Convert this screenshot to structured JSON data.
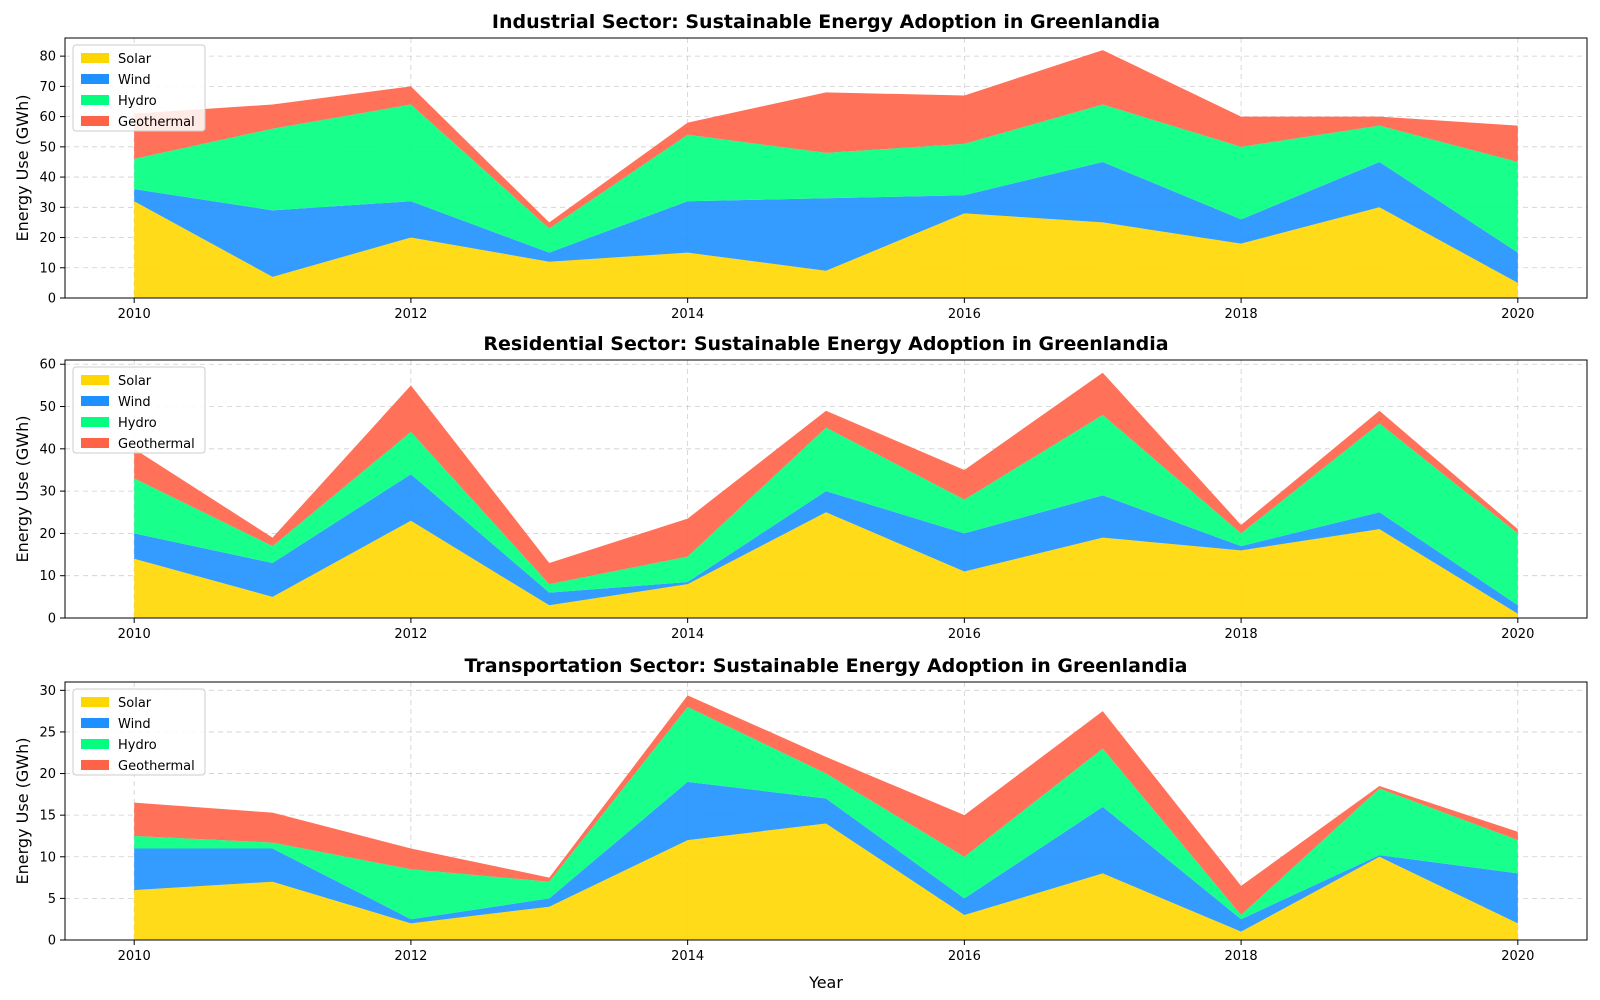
{
  "figure": {
    "xlabel": "Year"
  },
  "colors": {
    "Solar": "#FFD700",
    "Wind": "#1E90FF",
    "Hydro": "#00FF7F",
    "Geothermal": "#FF6347"
  },
  "chart_data": [
    {
      "type": "area",
      "stacked": true,
      "title": "Industrial Sector: Sustainable Energy Adoption in Greenlandia",
      "xlabel": "",
      "ylabel": "Energy Use (GWh)",
      "x": [
        2010,
        2011,
        2012,
        2013,
        2014,
        2015,
        2016,
        2017,
        2018,
        2019,
        2020
      ],
      "xticks": [
        2010,
        2012,
        2014,
        2016,
        2018,
        2020
      ],
      "yticks": [
        0,
        10,
        20,
        30,
        40,
        50,
        60,
        70,
        80
      ],
      "ylim": [
        0,
        86
      ],
      "xlim": [
        2009.5,
        2020.5
      ],
      "grid": true,
      "legend": "upper-left",
      "series": [
        {
          "name": "Solar",
          "values": [
            32,
            7,
            20,
            12,
            15,
            9,
            28,
            25,
            18,
            30,
            5
          ]
        },
        {
          "name": "Wind",
          "values": [
            4,
            22,
            12,
            3,
            17,
            24,
            6,
            20,
            8,
            15,
            10
          ]
        },
        {
          "name": "Hydro",
          "values": [
            10,
            27,
            32,
            8,
            22,
            15,
            17,
            19,
            24,
            12,
            30
          ]
        },
        {
          "name": "Geothermal",
          "values": [
            15,
            8,
            6,
            2,
            4,
            20,
            16,
            18,
            10,
            3,
            12
          ]
        }
      ]
    },
    {
      "type": "area",
      "stacked": true,
      "title": "Residential Sector: Sustainable Energy Adoption in Greenlandia",
      "xlabel": "",
      "ylabel": "Energy Use (GWh)",
      "x": [
        2010,
        2011,
        2012,
        2013,
        2014,
        2015,
        2016,
        2017,
        2018,
        2019,
        2020
      ],
      "xticks": [
        2010,
        2012,
        2014,
        2016,
        2018,
        2020
      ],
      "yticks": [
        0,
        10,
        20,
        30,
        40,
        50,
        60
      ],
      "ylim": [
        0,
        61
      ],
      "xlim": [
        2009.5,
        2020.5
      ],
      "grid": true,
      "legend": "upper-left",
      "series": [
        {
          "name": "Solar",
          "values": [
            14,
            5,
            23,
            3,
            8,
            25,
            11,
            19,
            16,
            21,
            1
          ]
        },
        {
          "name": "Wind",
          "values": [
            6,
            8,
            11,
            3,
            0.5,
            5,
            9,
            10,
            1,
            4,
            2
          ]
        },
        {
          "name": "Hydro",
          "values": [
            13,
            4,
            10,
            2,
            6,
            15,
            8,
            19,
            3,
            21,
            17
          ]
        },
        {
          "name": "Geothermal",
          "values": [
            7,
            2,
            11,
            5,
            9,
            4,
            7,
            10,
            2,
            3,
            1
          ]
        }
      ]
    },
    {
      "type": "area",
      "stacked": true,
      "title": "Transportation Sector: Sustainable Energy Adoption in Greenlandia",
      "xlabel": "Year",
      "ylabel": "Energy Use (GWh)",
      "x": [
        2010,
        2011,
        2012,
        2013,
        2014,
        2015,
        2016,
        2017,
        2018,
        2019,
        2020
      ],
      "xticks": [
        2010,
        2012,
        2014,
        2016,
        2018,
        2020
      ],
      "yticks": [
        0,
        5,
        10,
        15,
        20,
        25,
        30
      ],
      "ylim": [
        0,
        31
      ],
      "xlim": [
        2009.5,
        2020.5
      ],
      "grid": true,
      "legend": "upper-left",
      "series": [
        {
          "name": "Solar",
          "values": [
            6,
            7,
            2,
            4,
            12,
            14,
            3,
            8,
            1,
            10,
            2
          ]
        },
        {
          "name": "Wind",
          "values": [
            5,
            4,
            0.5,
            1,
            7,
            3,
            2,
            8,
            1.5,
            0.2,
            6
          ]
        },
        {
          "name": "Hydro",
          "values": [
            1.5,
            0.7,
            6,
            2,
            9,
            3,
            5,
            7,
            0.5,
            8,
            4
          ]
        },
        {
          "name": "Geothermal",
          "values": [
            4,
            3.6,
            2.5,
            0.5,
            1.4,
            2,
            5,
            4.5,
            3.5,
            0.3,
            1
          ]
        }
      ]
    }
  ]
}
